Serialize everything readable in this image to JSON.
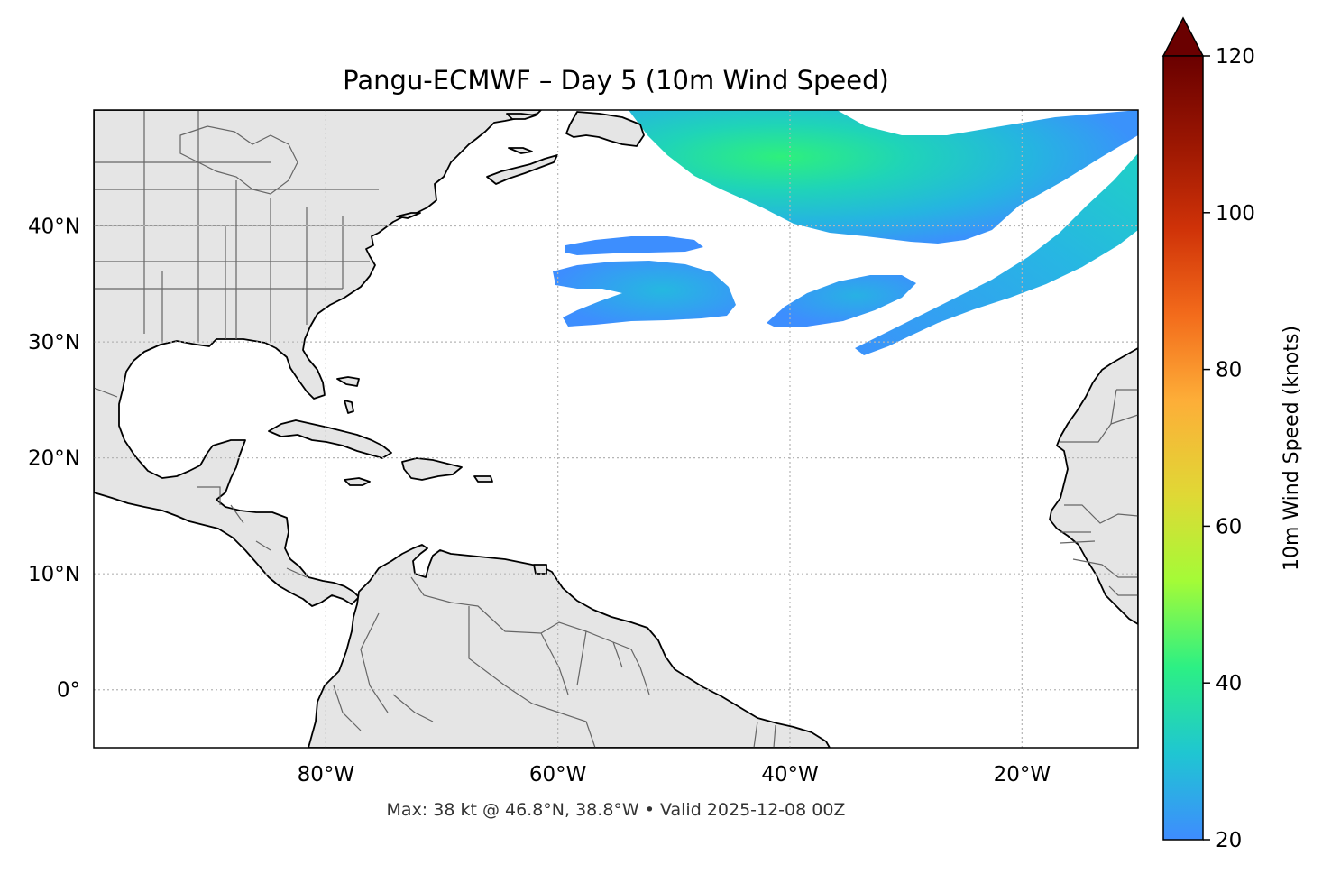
{
  "title": "Pangu-ECMWF – Day 5 (10m Wind Speed)",
  "footer": "Max: 38 kt @ 46.8°N, 38.8°W • Valid 2025-12-08 00Z",
  "map": {
    "lon_range": [
      -100,
      -10
    ],
    "lat_range": [
      -5,
      50
    ],
    "lon_ticks": [
      {
        "value": -80,
        "label": "80°W"
      },
      {
        "value": -60,
        "label": "60°W"
      },
      {
        "value": -40,
        "label": "40°W"
      },
      {
        "value": -20,
        "label": "20°W"
      }
    ],
    "lat_ticks": [
      {
        "value": 40,
        "label": "40°N"
      },
      {
        "value": 30,
        "label": "30°N"
      },
      {
        "value": 20,
        "label": "20°N"
      },
      {
        "value": 10,
        "label": "10°N"
      },
      {
        "value": 0,
        "label": "0°"
      }
    ],
    "gridlines": "dotted",
    "land_color": "#e5e5e5",
    "coast_color": "#000000",
    "border_color": "#666666",
    "wind_regions_kt": [
      {
        "region": "north-arc",
        "min": 20,
        "max": 38
      },
      {
        "region": "northeast-band",
        "min": 20,
        "max": 30
      },
      {
        "region": "central-west-blob",
        "min": 20,
        "max": 28
      },
      {
        "region": "central-east-blob",
        "min": 20,
        "max": 27
      },
      {
        "region": "thin-strip",
        "min": 20,
        "max": 24
      }
    ]
  },
  "colorbar": {
    "label": "10m Wind Speed (knots)",
    "min": 20,
    "max": 120,
    "extend": "max",
    "ticks": [
      {
        "value": 20,
        "label": "20"
      },
      {
        "value": 40,
        "label": "40"
      },
      {
        "value": 60,
        "label": "60"
      },
      {
        "value": 80,
        "label": "80"
      },
      {
        "value": 100,
        "label": "100"
      },
      {
        "value": 120,
        "label": "120"
      }
    ],
    "colormap": [
      "#3e8cff",
      "#1fc6d2",
      "#2cf084",
      "#a4fb37",
      "#e0d835",
      "#fdae38",
      "#f36b1b",
      "#cf3208",
      "#9a1602",
      "#6a0000"
    ]
  }
}
